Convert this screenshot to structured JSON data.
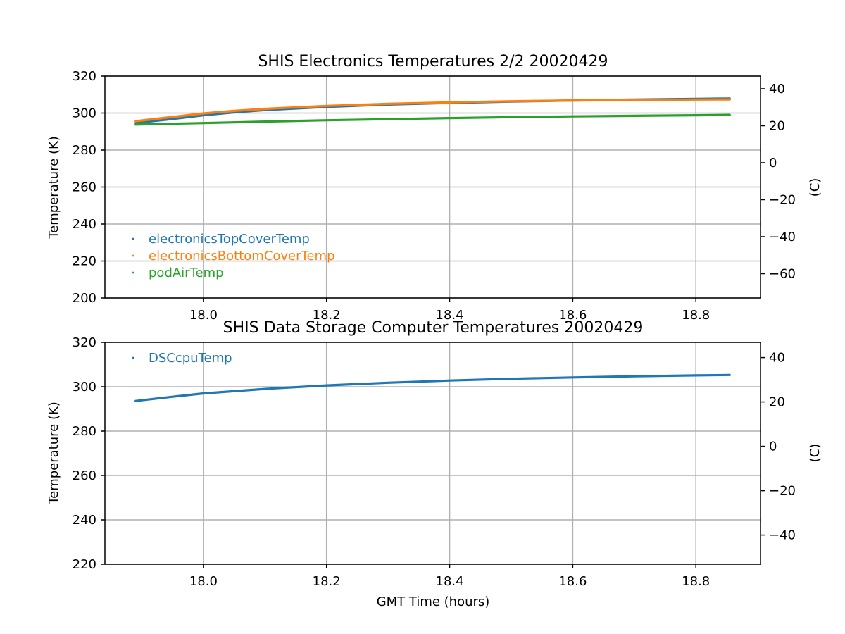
{
  "chart_data": [
    {
      "type": "line",
      "marker": "point",
      "title": "SHIS Electronics Temperatures 2/2 20020429",
      "xlabel": "",
      "ylabel": "Temperature (K)",
      "y2label": "(C)",
      "xlim": [
        17.84,
        18.905
      ],
      "ylim": [
        200,
        320
      ],
      "y2lim": [
        -73.15,
        46.85
      ],
      "xticks": [
        18.0,
        18.2,
        18.4,
        18.6,
        18.8
      ],
      "xtick_labels": [
        "18.0",
        "18.2",
        "18.4",
        "18.6",
        "18.8"
      ],
      "yticks": [
        200,
        220,
        240,
        260,
        280,
        300,
        320
      ],
      "ytick_labels": [
        "200",
        "220",
        "240",
        "260",
        "280",
        "300",
        "320"
      ],
      "y2ticks": [
        -60,
        -40,
        -20,
        0,
        20,
        40
      ],
      "y2tick_labels": [
        "−60",
        "−40",
        "−20",
        "0",
        "20",
        "40"
      ],
      "grid": true,
      "legend_position": "lower-left",
      "series": [
        {
          "name": "electronicsTopCoverTemp",
          "color": "#1f77b4",
          "x": [
            17.89,
            17.95,
            18.0,
            18.05,
            18.1,
            18.2,
            18.3,
            18.4,
            18.5,
            18.6,
            18.7,
            18.8,
            18.855
          ],
          "y": [
            294.6,
            296.8,
            298.8,
            300.4,
            301.6,
            303.3,
            304.6,
            305.5,
            306.2,
            306.8,
            307.3,
            307.7,
            307.9
          ]
        },
        {
          "name": "electronicsBottomCoverTemp",
          "color": "#ff7f0e",
          "x": [
            17.89,
            17.95,
            18.0,
            18.05,
            18.1,
            18.2,
            18.3,
            18.4,
            18.5,
            18.6,
            18.7,
            18.8,
            18.855
          ],
          "y": [
            295.6,
            297.9,
            299.8,
            301.2,
            302.3,
            303.9,
            305.0,
            305.8,
            306.4,
            306.8,
            307.1,
            307.3,
            307.4
          ]
        },
        {
          "name": "podAirTemp",
          "color": "#2ca02c",
          "x": [
            17.89,
            18.0,
            18.1,
            18.2,
            18.3,
            18.4,
            18.5,
            18.6,
            18.7,
            18.8,
            18.855
          ],
          "y": [
            293.8,
            294.6,
            295.4,
            296.1,
            296.7,
            297.3,
            297.8,
            298.2,
            298.5,
            298.8,
            299.0
          ]
        }
      ]
    },
    {
      "type": "line",
      "marker": "point",
      "title": "SHIS Data Storage Computer Temperatures 20020429",
      "xlabel": "GMT Time (hours)",
      "ylabel": "Temperature (K)",
      "y2label": "(C)",
      "xlim": [
        17.84,
        18.905
      ],
      "ylim": [
        220,
        320
      ],
      "y2lim": [
        -53.15,
        46.85
      ],
      "xticks": [
        18.0,
        18.2,
        18.4,
        18.6,
        18.8
      ],
      "xtick_labels": [
        "18.0",
        "18.2",
        "18.4",
        "18.6",
        "18.8"
      ],
      "yticks": [
        220,
        240,
        260,
        280,
        300,
        320
      ],
      "ytick_labels": [
        "220",
        "240",
        "260",
        "280",
        "300",
        "320"
      ],
      "y2ticks": [
        -40,
        -20,
        0,
        20,
        40
      ],
      "y2tick_labels": [
        "−40",
        "−20",
        "0",
        "20",
        "40"
      ],
      "grid": true,
      "legend_position": "upper-left",
      "series": [
        {
          "name": "DSCcpuTemp",
          "color": "#1f77b4",
          "x": [
            17.89,
            17.95,
            18.0,
            18.1,
            18.2,
            18.3,
            18.4,
            18.5,
            18.6,
            18.7,
            18.8,
            18.855
          ],
          "y": [
            293.6,
            295.5,
            297.0,
            299.0,
            300.6,
            301.8,
            302.8,
            303.6,
            304.2,
            304.7,
            305.1,
            305.3
          ]
        }
      ]
    }
  ]
}
